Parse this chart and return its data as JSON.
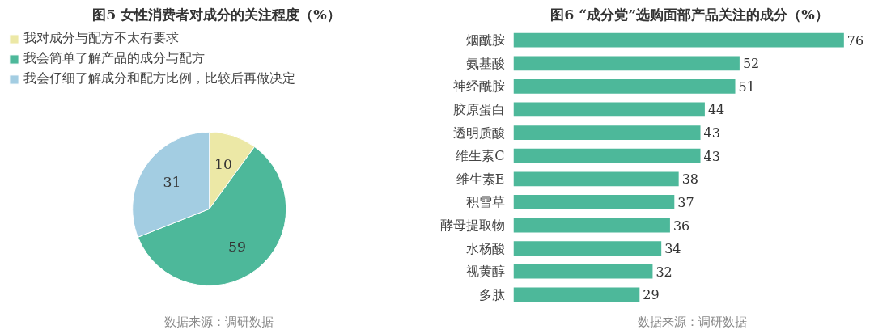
{
  "chart_data": [
    {
      "type": "pie",
      "title": "图5  女性消费者对成分的关注程度（%）",
      "categories": [
        "我对成分与配方不太有要求",
        "我会简单了解产品的成分与配方",
        "我会仔细了解成分和配方比例，比较后再做决定"
      ],
      "values": [
        10,
        59,
        31
      ],
      "colors": [
        "#ece8a6",
        "#4db89a",
        "#a3cde2"
      ],
      "data_labels": true,
      "legend": "top left",
      "annotations": [
        "数据来源：调研数据"
      ]
    },
    {
      "type": "bar",
      "orientation": "horizontal",
      "title": "图6  “成分党”选购面部产品关注的成分（%）",
      "categories": [
        "烟酰胺",
        "氨基酸",
        "神经酰胺",
        "胶原蛋白",
        "透明质酸",
        "维生素C",
        "维生素E",
        "积雪草",
        "酵母提取物",
        "水杨酸",
        "视黄醇",
        "多肽"
      ],
      "values": [
        76,
        52,
        51,
        44,
        43,
        43,
        38,
        37,
        36,
        34,
        32,
        29
      ],
      "color": "#4db89a",
      "data_labels": true,
      "grid": false,
      "tick_labels": "y",
      "annotations": [
        "数据来源：调研数据"
      ]
    }
  ]
}
